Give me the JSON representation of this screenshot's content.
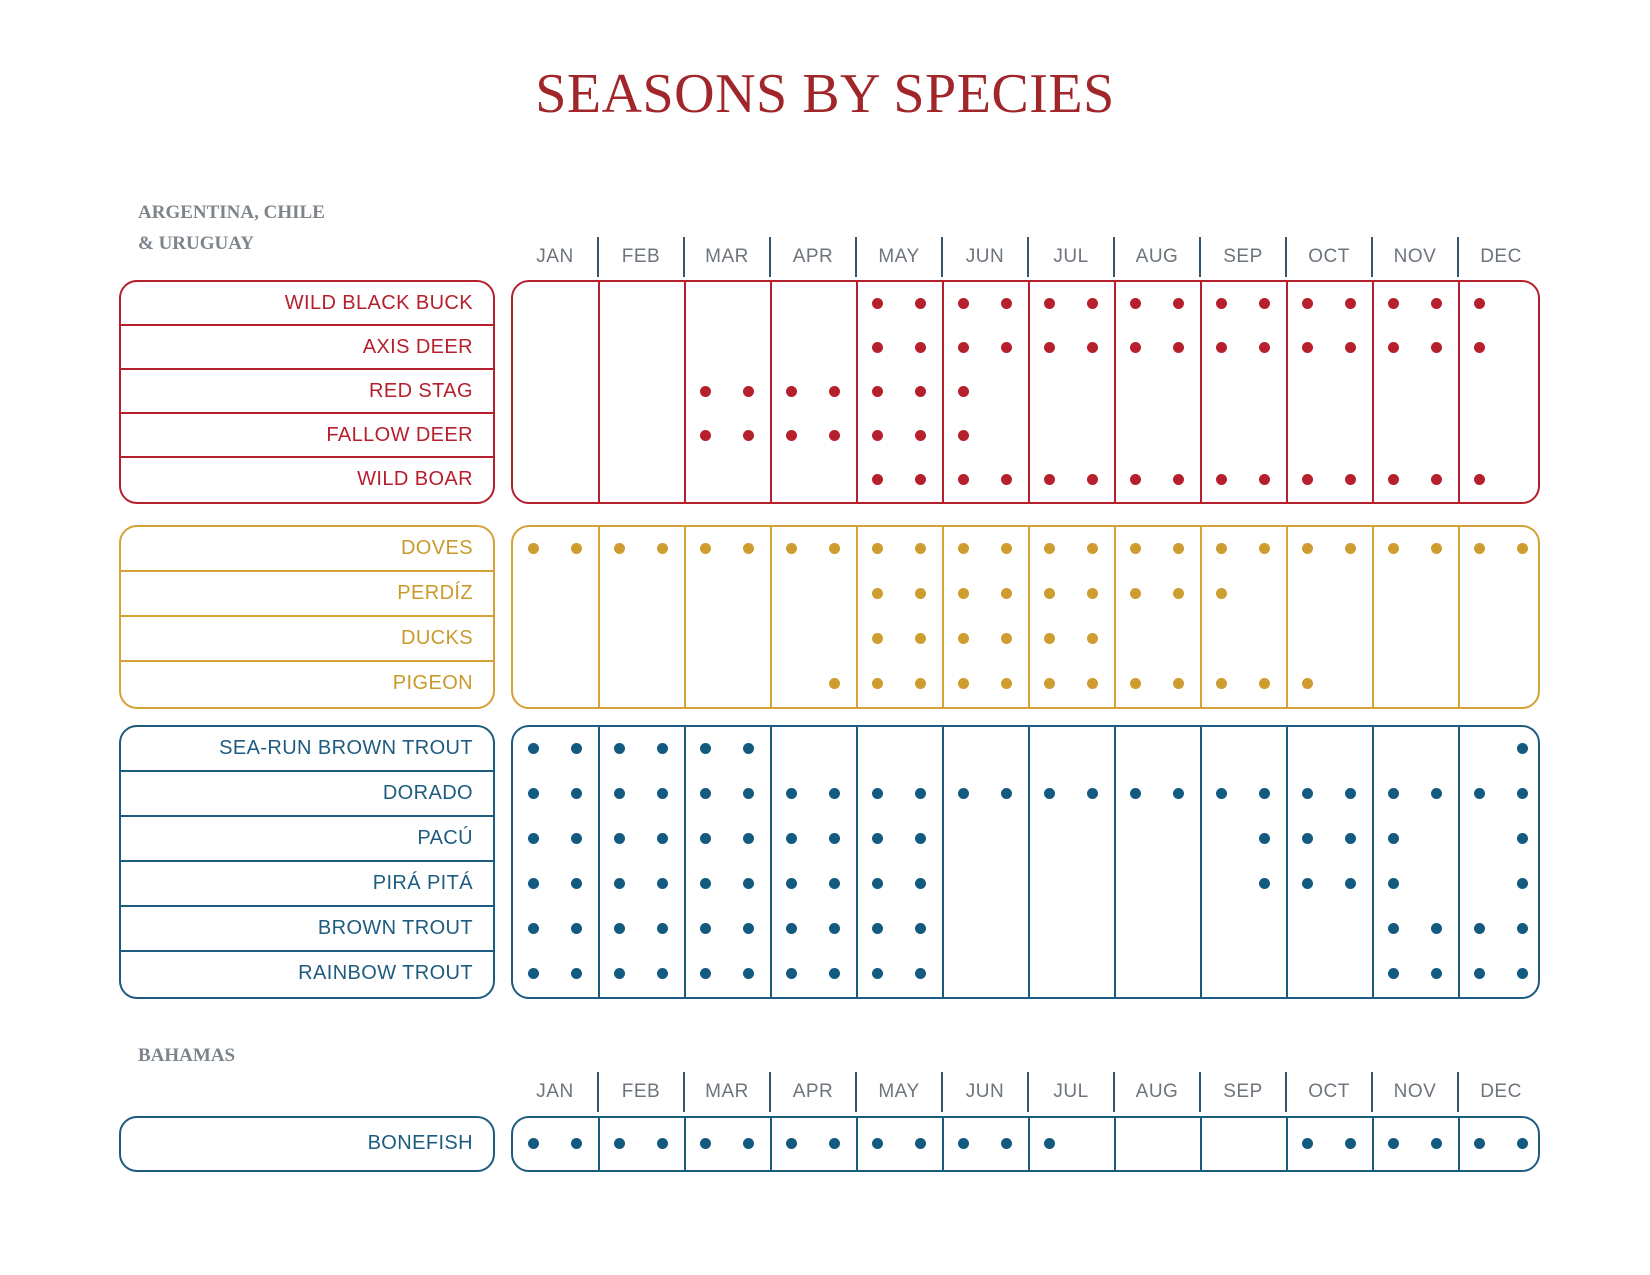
{
  "title": "SEASONS BY SPECIES",
  "months": [
    "JAN",
    "FEB",
    "MAR",
    "APR",
    "MAY",
    "JUN",
    "JUL",
    "AUG",
    "SEP",
    "OCT",
    "NOV",
    "DEC"
  ],
  "colors": {
    "title": "#a0262a",
    "red": "#b5202c",
    "gold": "#d4a236",
    "blue": "#1d5c80",
    "region": "#7d848b"
  },
  "regions": [
    {
      "name_line1": "ARGENTINA, CHILE",
      "name_line2": "& URUGUAY",
      "groups": [
        {
          "color": "red",
          "rows": [
            {
              "label": "WILD BLACK BUCK",
              "halves": [
                8,
                9,
                10,
                11,
                12,
                13,
                14,
                15,
                16,
                17,
                18,
                19,
                20,
                21,
                22
              ]
            },
            {
              "label": "AXIS DEER",
              "halves": [
                8,
                9,
                10,
                11,
                12,
                13,
                14,
                15,
                16,
                17,
                18,
                19,
                20,
                21,
                22
              ]
            },
            {
              "label": "RED STAG",
              "halves": [
                4,
                5,
                6,
                7,
                8,
                9,
                10
              ]
            },
            {
              "label": "FALLOW DEER",
              "halves": [
                4,
                5,
                6,
                7,
                8,
                9,
                10
              ]
            },
            {
              "label": "WILD BOAR",
              "halves": [
                8,
                9,
                10,
                11,
                12,
                13,
                14,
                15,
                16,
                17,
                18,
                19,
                20,
                21,
                22
              ]
            }
          ]
        },
        {
          "color": "gold",
          "rows": [
            {
              "label": "DOVES",
              "halves": [
                0,
                1,
                2,
                3,
                4,
                5,
                6,
                7,
                8,
                9,
                10,
                11,
                12,
                13,
                14,
                15,
                16,
                17,
                18,
                19,
                20,
                21,
                22,
                23
              ]
            },
            {
              "label": "PERDÍZ",
              "halves": [
                8,
                9,
                10,
                11,
                12,
                13,
                14,
                15,
                16
              ]
            },
            {
              "label": "DUCKS",
              "halves": [
                8,
                9,
                10,
                11,
                12,
                13
              ]
            },
            {
              "label": "PIGEON",
              "halves": [
                7,
                8,
                9,
                10,
                11,
                12,
                13,
                14,
                15,
                16,
                17,
                18
              ]
            }
          ]
        },
        {
          "color": "blue",
          "rows": [
            {
              "label": "SEA-RUN BROWN TROUT",
              "halves": [
                0,
                1,
                2,
                3,
                4,
                5,
                23
              ]
            },
            {
              "label": "DORADO",
              "halves": [
                0,
                1,
                2,
                3,
                4,
                5,
                6,
                7,
                8,
                9,
                10,
                11,
                12,
                13,
                14,
                15,
                16,
                17,
                18,
                19,
                20,
                21,
                22,
                23
              ]
            },
            {
              "label": "PACÚ",
              "halves": [
                0,
                1,
                2,
                3,
                4,
                5,
                6,
                7,
                8,
                9,
                17,
                18,
                19,
                20,
                23
              ]
            },
            {
              "label": "PIRÁ PITÁ",
              "halves": [
                0,
                1,
                2,
                3,
                4,
                5,
                6,
                7,
                8,
                9,
                17,
                18,
                19,
                20,
                23
              ]
            },
            {
              "label": "BROWN TROUT",
              "halves": [
                0,
                1,
                2,
                3,
                4,
                5,
                6,
                7,
                8,
                9,
                20,
                21,
                22,
                23
              ]
            },
            {
              "label": "RAINBOW TROUT",
              "halves": [
                0,
                1,
                2,
                3,
                4,
                5,
                6,
                7,
                8,
                9,
                20,
                21,
                22,
                23
              ]
            }
          ]
        }
      ]
    },
    {
      "name_line1": "BAHAMAS",
      "name_line2": "",
      "groups": [
        {
          "color": "blue",
          "rows": [
            {
              "label": "BONEFISH",
              "halves": [
                0,
                1,
                2,
                3,
                4,
                5,
                6,
                7,
                8,
                9,
                10,
                11,
                12,
                18,
                19,
                20,
                21,
                22,
                23
              ]
            }
          ]
        }
      ]
    }
  ]
}
